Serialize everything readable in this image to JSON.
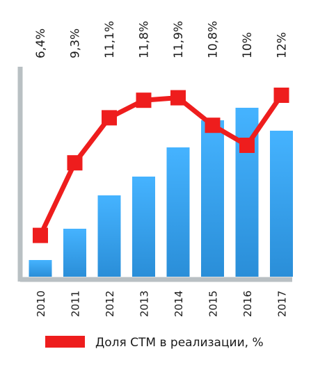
{
  "chart_data": {
    "type": "bar",
    "categories": [
      "2010",
      "2011",
      "2012",
      "2013",
      "2014",
      "2015",
      "2016",
      "2017"
    ],
    "bar_values": [
      8,
      23,
      39,
      48,
      62,
      75,
      81,
      70
    ],
    "bar_ylim": [
      0,
      100
    ],
    "line_series": {
      "name": "Доля СТМ в реализации, %",
      "values": [
        6.4,
        9.3,
        11.1,
        11.8,
        11.9,
        10.8,
        10,
        12
      ],
      "labels": [
        "6,4%",
        "9,3%",
        "11,1%",
        "11,8%",
        "11,9%",
        "10,8%",
        "10%",
        "12%"
      ]
    },
    "line_ylim": [
      4.0,
      14.0
    ],
    "grid": false,
    "legend_position": "bottom",
    "colors": {
      "bar_top": "#45b3ff",
      "bar_bottom": "#2a8ed8",
      "line": "#ee1d1d",
      "axis": "#b9c0c3"
    }
  }
}
